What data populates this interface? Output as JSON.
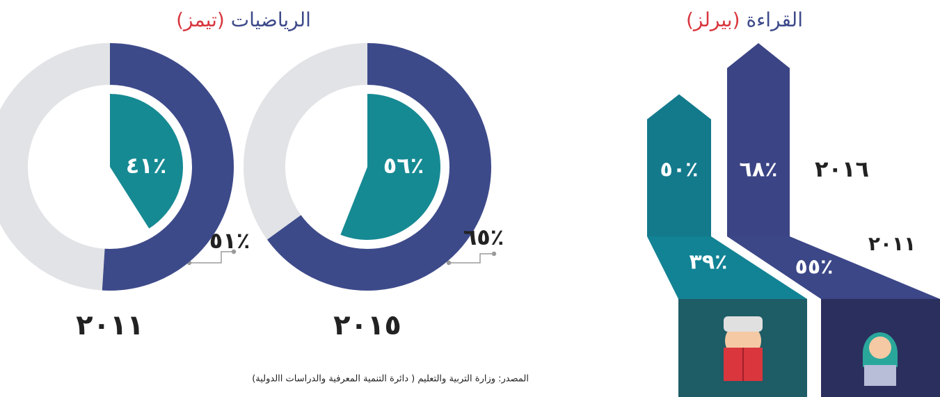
{
  "chart_data": [
    {
      "type": "donut",
      "title": "الرياضيات",
      "subtitle": "(تيمز)",
      "categories": [
        "٢٠١١",
        "٢٠١٥"
      ],
      "track_color": "#e2e3e6",
      "series": [
        {
          "color": "#3d4a8a",
          "values": [
            51,
            65
          ],
          "value_labels": [
            "٪٥١",
            "٪٦٥"
          ]
        },
        {
          "color": "#168a93",
          "values": [
            41,
            56
          ],
          "value_labels": [
            "٪٤١",
            "٪٥٦"
          ]
        }
      ]
    },
    {
      "type": "arrow",
      "title": "القراءة",
      "subtitle": "(بيرلز)",
      "categories": [
        "٢٠١١",
        "٢٠١٦"
      ],
      "series": [
        {
          "color": "#137a8c",
          "values": [
            39,
            50
          ],
          "value_labels": [
            "٪٣٩",
            "٪٥٠"
          ]
        },
        {
          "color": "#3b4484",
          "values": [
            55,
            68
          ],
          "value_labels": [
            "٪٥٥",
            "٪٦٨"
          ]
        }
      ]
    }
  ],
  "source": "المصدر: وزارة التربية والتعليم ( دائرة التنمية المعرفية والدراسات االدولية)"
}
